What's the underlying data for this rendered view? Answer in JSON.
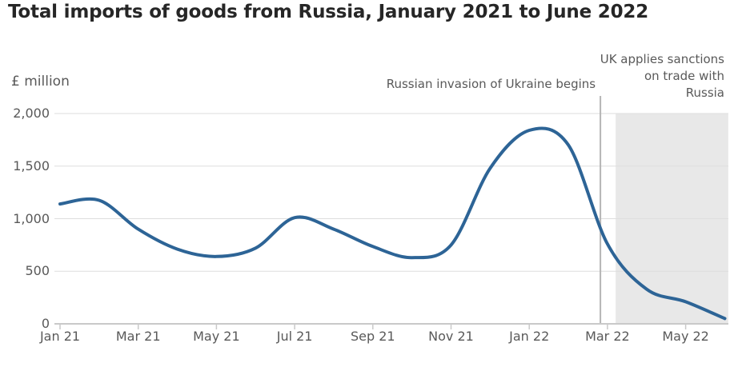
{
  "chart_data": {
    "type": "line",
    "title": "Total imports of goods from Russia, January 2021 to June 2022",
    "ylabel": "£ million",
    "x": [
      "Jan 21",
      "Feb 21",
      "Mar 21",
      "Apr 21",
      "May 21",
      "Jun 21",
      "Jul 21",
      "Aug 21",
      "Sep 21",
      "Oct 21",
      "Nov 21",
      "Dec 21",
      "Jan 22",
      "Feb 22",
      "Mar 22",
      "Apr 22",
      "May 22",
      "Jun 22"
    ],
    "values": [
      1140,
      1175,
      900,
      710,
      640,
      720,
      1010,
      900,
      735,
      630,
      750,
      1480,
      1840,
      1700,
      760,
      330,
      210,
      50
    ],
    "x_tick_labels": [
      "Jan 21",
      "Mar 21",
      "May 21",
      "Jul 21",
      "Sep 21",
      "Nov 21",
      "Jan 22",
      "Mar 22",
      "May 22"
    ],
    "x_tick_month_indices": [
      0,
      2,
      4,
      6,
      8,
      10,
      12,
      14,
      16
    ],
    "y_ticks": [
      0,
      500,
      1000,
      1500,
      2000
    ],
    "y_tick_labels": [
      "0",
      "500",
      "1,000",
      "1,500",
      "2,000"
    ],
    "ylim": [
      0,
      2000
    ],
    "grid": "horizontal",
    "legend": "none",
    "line_color": "#2d6496",
    "shade_color": "#e8e8e8",
    "gridline_color": "#dedede",
    "axis_color": "#c9c9c9",
    "event_line_color": "#b5b5b5",
    "annotations": [
      {
        "type": "vline",
        "label": "Russian invasion of Ukraine begins",
        "month_index": 13.82
      },
      {
        "type": "region",
        "label": "UK applies sanctions on trade with Russia",
        "lines": [
          "UK applies sanctions",
          "on trade with",
          "Russia"
        ],
        "start_month_index": 14.21,
        "end_month_index": 17.09
      }
    ]
  }
}
